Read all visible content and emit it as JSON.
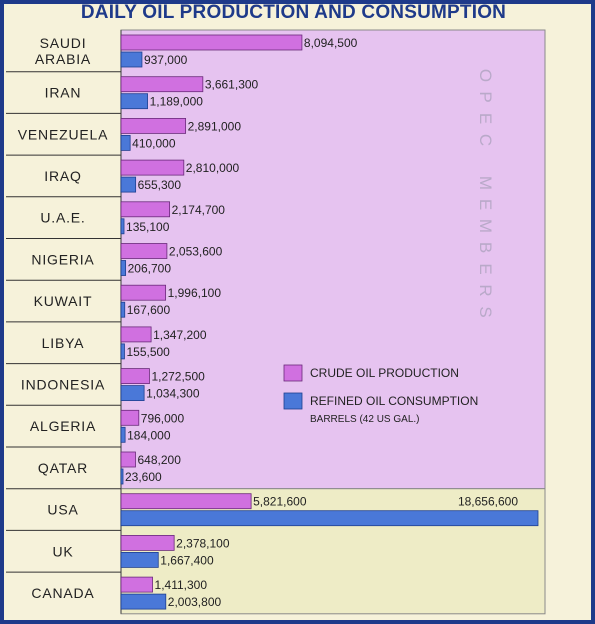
{
  "chart_data": {
    "type": "bar",
    "orientation": "horizontal",
    "title": "DAILY OIL PRODUCTION AND CONSUMPTION",
    "categories": [
      [
        "SAUDI",
        "ARABIA"
      ],
      [
        "IRAN"
      ],
      [
        "VENEZUELA"
      ],
      [
        "IRAQ"
      ],
      [
        "U.A.E."
      ],
      [
        "NIGERIA"
      ],
      [
        "KUWAIT"
      ],
      [
        "LIBYA"
      ],
      [
        "INDONESIA"
      ],
      [
        "ALGERIA"
      ],
      [
        "QATAR"
      ],
      [
        "USA"
      ],
      [
        "UK"
      ],
      [
        "CANADA"
      ]
    ],
    "series": [
      {
        "name": "CRUDE OIL PRODUCTION",
        "color": "#d070e0",
        "values": [
          8094500,
          3661300,
          2891000,
          2810000,
          2174700,
          2053600,
          1996100,
          1347200,
          1272500,
          796000,
          648200,
          5821600,
          2378100,
          1411300
        ],
        "labels": [
          "8,094,500",
          "3,661,300",
          "2,891,000",
          "2,810,000",
          "2,174,700",
          "2,053,600",
          "1,996,100",
          "1,347,200",
          "1,272,500",
          "796,000",
          "648,200",
          "5,821,600",
          "2,378,100",
          "1,411,300"
        ]
      },
      {
        "name": "REFINED OIL CONSUMPTION",
        "color": "#4a78d8",
        "values": [
          937000,
          1189000,
          410000,
          655300,
          135100,
          206700,
          167600,
          155500,
          1034300,
          184000,
          23600,
          18656600,
          1667400,
          2003800
        ],
        "labels": [
          "937,000",
          "1,189,000",
          "410,000",
          "655,300",
          "135,100",
          "206,700",
          "167,600",
          "155,500",
          "1,034,300",
          "184,000",
          "23,600",
          "18,656,600",
          "1,667,400",
          "2,003,800"
        ]
      }
    ],
    "group_label": "OPEC MEMBERS",
    "opec_count": 11,
    "unit_note": "BARRELS (42 US GAL.)",
    "xlim": [
      0,
      18656600
    ],
    "grid": false,
    "legend_position": "middle-right",
    "colors": {
      "opec_background": "#e6c3f0",
      "non_opec_background": "#eeecc6",
      "frame": "#1e3a8a"
    }
  }
}
